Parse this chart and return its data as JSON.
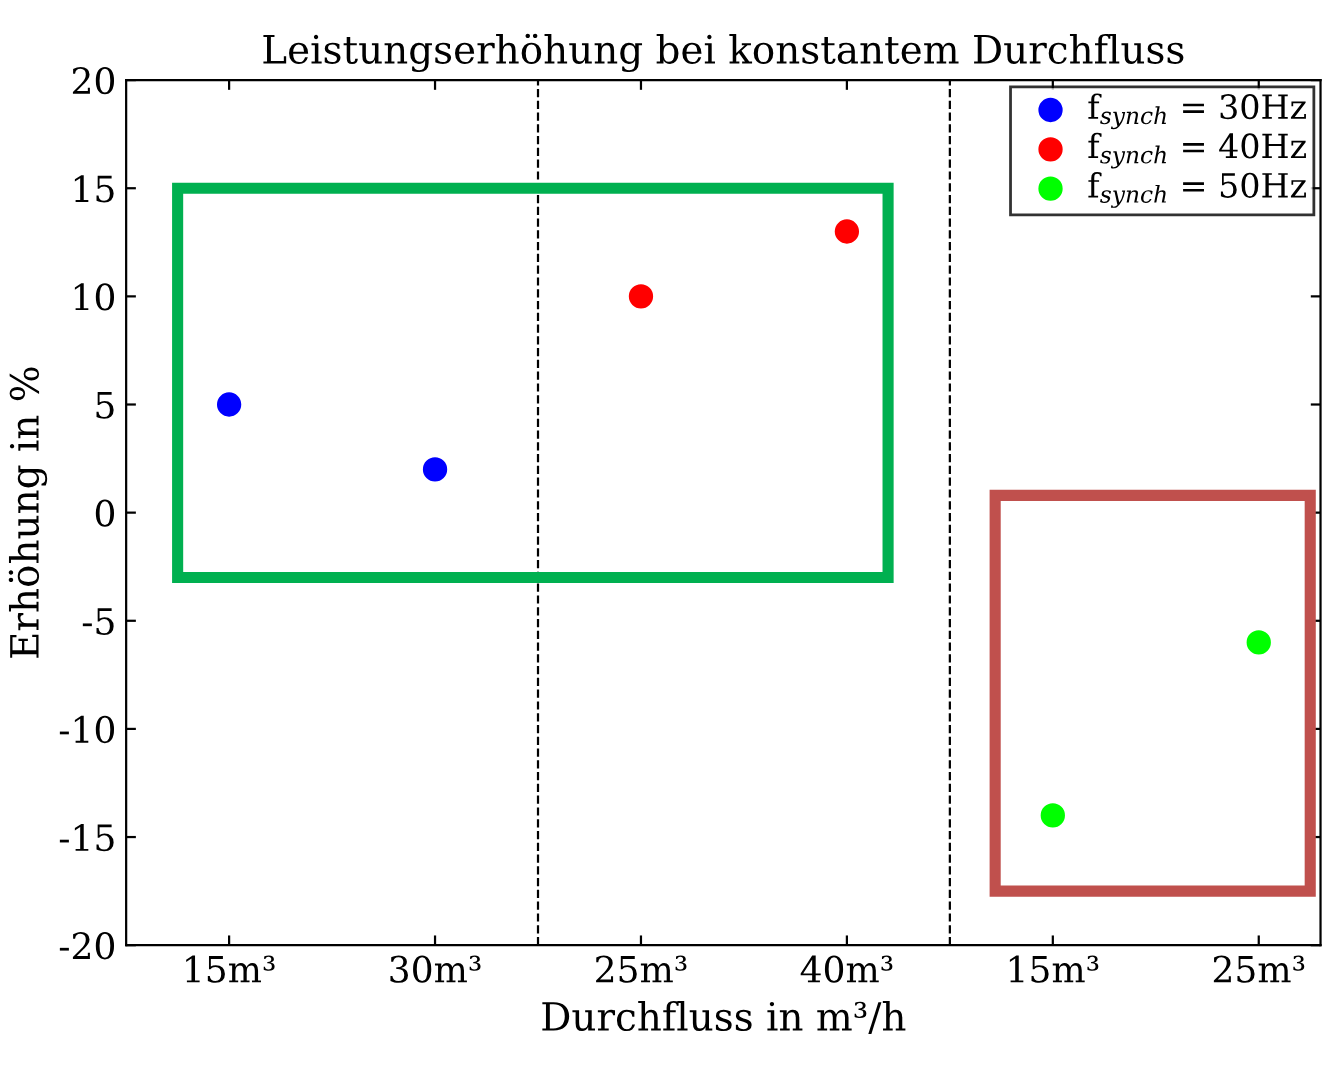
{
  "chart_data": {
    "type": "scatter",
    "title": "Leistungserhöhung bei konstantem Durchfluss",
    "xlabel": "Durchfluss in m³/h",
    "ylabel": "Erhöhung in %",
    "categories": [
      "15m³",
      "30m³",
      "25m³",
      "40m³",
      "15m³",
      "25m³"
    ],
    "series": [
      {
        "name": "f$_{synch}$ = 30Hz",
        "color": "#0000ff",
        "values": [
          5,
          2,
          null,
          null,
          null,
          null
        ]
      },
      {
        "name": "f$_{synch}$ = 40Hz",
        "color": "#ff0000",
        "values": [
          null,
          null,
          10,
          13,
          null,
          null
        ]
      },
      {
        "name": "f$_{synch}$ = 50Hz",
        "color": "#00ff00",
        "values": [
          null,
          null,
          null,
          null,
          -14,
          -6
        ]
      }
    ],
    "ylim": [
      -20,
      20
    ],
    "yticks": [
      20,
      15,
      10,
      5,
      0,
      {
        "value": -5,
        "label": "-5"
      },
      {
        "value": -10,
        "label": "-10"
      },
      {
        "value": -15,
        "label": "-15"
      },
      {
        "value": -20,
        "label": "-20"
      }
    ],
    "grid": false,
    "legend": "top right",
    "marker": "circle"
  }
}
